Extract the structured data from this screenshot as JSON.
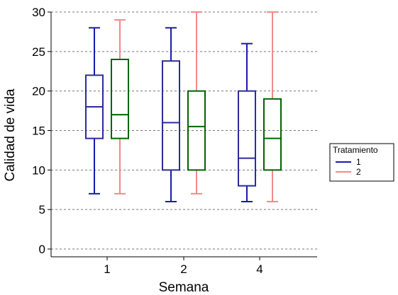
{
  "chart_data": {
    "type": "box",
    "xlabel": "Semana",
    "ylabel": "Calidad de vida",
    "categories": [
      "1",
      "2",
      "4"
    ],
    "ylim": [
      0,
      30
    ],
    "yticks": [
      0,
      5,
      10,
      15,
      20,
      25,
      30
    ],
    "grid": "horizontal dashed",
    "legend": {
      "title": "Tratamiento",
      "placement": "right",
      "entries": [
        "1",
        "2"
      ]
    },
    "series": [
      {
        "name": "1",
        "whisker_color": "#1a1aa8",
        "box_color": "#2b2b9c",
        "boxes": [
          {
            "category": "1",
            "min": 7,
            "q1": 14,
            "median": 18,
            "q3": 22,
            "max": 28
          },
          {
            "category": "2",
            "min": 6,
            "q1": 10,
            "median": 16,
            "q3": 23.8,
            "max": 28
          },
          {
            "category": "4",
            "min": 6,
            "q1": 8,
            "median": 11.5,
            "q3": 20,
            "max": 26
          }
        ]
      },
      {
        "name": "2",
        "whisker_color": "#f08a8a",
        "box_color": "#006400",
        "boxes": [
          {
            "category": "1",
            "min": 7,
            "q1": 14,
            "median": 17,
            "q3": 24,
            "max": 29
          },
          {
            "category": "2",
            "min": 7,
            "q1": 10,
            "median": 15.5,
            "q3": 20,
            "max": 30
          },
          {
            "category": "4",
            "min": 6,
            "q1": 10,
            "median": 14,
            "q3": 19,
            "max": 30
          }
        ]
      }
    ]
  }
}
